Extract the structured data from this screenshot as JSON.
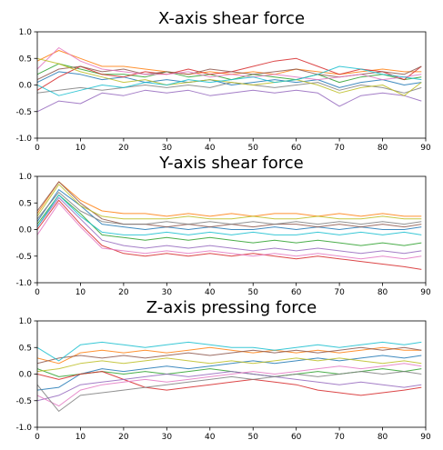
{
  "palette": [
    "#1f77b4",
    "#ff7f0e",
    "#2ca02c",
    "#d62728",
    "#9467bd",
    "#8c564b",
    "#e377c2",
    "#7f7f7f",
    "#bcbd22",
    "#17becf"
  ],
  "chart_data": [
    {
      "type": "line",
      "title": "X-axis shear force",
      "xlabel": "",
      "ylabel": "",
      "xlim": [
        0,
        90
      ],
      "ylim": [
        -1.0,
        1.0
      ],
      "x_ticks": [
        0,
        10,
        20,
        30,
        40,
        50,
        60,
        70,
        80,
        90
      ],
      "y_ticks": [
        -1.0,
        -0.5,
        0.0,
        0.5,
        1.0
      ],
      "x_tick_labels": [
        "0",
        "10",
        "20",
        "30",
        "40",
        "50",
        "60",
        "70",
        "80",
        "90"
      ],
      "y_tick_labels": [
        "-1.0",
        "-0.5",
        "0.0",
        "0.5",
        "1.0"
      ],
      "x": [
        0,
        5,
        10,
        15,
        20,
        25,
        30,
        35,
        40,
        45,
        50,
        55,
        60,
        65,
        70,
        75,
        80,
        85,
        89
      ],
      "series": [
        {
          "values": [
            0.05,
            0.25,
            0.2,
            0.1,
            0.15,
            0.05,
            0.1,
            0.05,
            0.1,
            0.0,
            0.05,
            0.1,
            0.05,
            0.1,
            -0.05,
            0.05,
            0.1,
            0.0,
            0.05
          ]
        },
        {
          "values": [
            0.45,
            0.65,
            0.5,
            0.35,
            0.35,
            0.3,
            0.25,
            0.2,
            0.25,
            0.2,
            0.25,
            0.2,
            0.3,
            0.25,
            0.2,
            0.25,
            0.3,
            0.25,
            0.25
          ]
        },
        {
          "values": [
            0.2,
            0.4,
            0.3,
            0.2,
            0.2,
            0.15,
            0.25,
            0.15,
            0.2,
            0.1,
            0.2,
            0.15,
            0.1,
            0.2,
            0.05,
            0.15,
            0.2,
            0.1,
            0.15
          ]
        },
        {
          "values": [
            -0.1,
            0.15,
            0.35,
            0.2,
            0.15,
            0.25,
            0.2,
            0.3,
            0.2,
            0.25,
            0.35,
            0.45,
            0.5,
            0.35,
            0.2,
            0.3,
            0.25,
            0.1,
            0.35
          ]
        },
        {
          "values": [
            -0.5,
            -0.3,
            -0.35,
            -0.15,
            -0.2,
            -0.1,
            -0.15,
            -0.1,
            -0.2,
            -0.15,
            -0.1,
            -0.15,
            -0.1,
            -0.15,
            -0.4,
            -0.2,
            -0.15,
            -0.2,
            -0.3
          ]
        },
        {
          "values": [
            0.1,
            0.3,
            0.35,
            0.25,
            0.3,
            0.2,
            0.25,
            0.2,
            0.3,
            0.25,
            0.2,
            0.25,
            0.3,
            0.2,
            0.15,
            0.2,
            0.25,
            0.2,
            0.35
          ]
        },
        {
          "values": [
            0.3,
            0.7,
            0.45,
            0.3,
            0.25,
            0.2,
            0.2,
            0.25,
            0.15,
            0.2,
            0.15,
            0.2,
            0.15,
            0.1,
            0.15,
            0.2,
            0.1,
            0.15,
            0.2
          ]
        },
        {
          "values": [
            -0.15,
            -0.1,
            -0.05,
            -0.1,
            -0.05,
            0.0,
            -0.05,
            0.0,
            -0.05,
            0.05,
            0.0,
            -0.05,
            0.0,
            0.05,
            -0.1,
            0.0,
            -0.05,
            -0.15,
            -0.05
          ]
        },
        {
          "values": [
            0.5,
            0.4,
            0.25,
            0.15,
            0.05,
            0.1,
            0.0,
            0.05,
            0.1,
            0.05,
            0.0,
            0.05,
            0.1,
            0.0,
            -0.15,
            -0.05,
            0.0,
            -0.2,
            0.05
          ]
        },
        {
          "values": [
            0.0,
            -0.2,
            -0.1,
            0.0,
            -0.05,
            0.05,
            0.0,
            0.1,
            0.05,
            0.1,
            0.15,
            0.05,
            0.1,
            0.2,
            0.35,
            0.3,
            0.2,
            0.15,
            0.1
          ]
        }
      ]
    },
    {
      "type": "line",
      "title": "Y-axis shear force",
      "xlabel": "",
      "ylabel": "",
      "xlim": [
        0,
        90
      ],
      "ylim": [
        -1.0,
        1.0
      ],
      "x_ticks": [
        0,
        10,
        20,
        30,
        40,
        50,
        60,
        70,
        80,
        90
      ],
      "y_ticks": [
        -1.0,
        -0.5,
        0.0,
        0.5,
        1.0
      ],
      "x_tick_labels": [
        "0",
        "10",
        "20",
        "30",
        "40",
        "50",
        "60",
        "70",
        "80",
        "90"
      ],
      "y_tick_labels": [
        "-1.0",
        "-0.5",
        "0.0",
        "0.5",
        "1.0"
      ],
      "x": [
        0,
        5,
        10,
        15,
        20,
        25,
        30,
        35,
        40,
        45,
        50,
        55,
        60,
        65,
        70,
        75,
        80,
        85,
        89
      ],
      "series": [
        {
          "values": [
            0.15,
            0.75,
            0.45,
            0.1,
            0.05,
            0.0,
            0.05,
            0.0,
            0.05,
            0.0,
            0.0,
            0.05,
            0.0,
            0.05,
            0.0,
            0.05,
            0.0,
            0.0,
            0.05
          ]
        },
        {
          "values": [
            0.3,
            0.9,
            0.55,
            0.35,
            0.3,
            0.3,
            0.25,
            0.3,
            0.25,
            0.3,
            0.25,
            0.3,
            0.3,
            0.25,
            0.3,
            0.25,
            0.3,
            0.25,
            0.25
          ]
        },
        {
          "values": [
            0.1,
            0.65,
            0.3,
            -0.1,
            -0.15,
            -0.2,
            -0.15,
            -0.2,
            -0.15,
            -0.2,
            -0.25,
            -0.2,
            -0.25,
            -0.2,
            -0.25,
            -0.3,
            -0.25,
            -0.3,
            -0.25
          ]
        },
        {
          "values": [
            0.0,
            0.55,
            0.1,
            -0.3,
            -0.45,
            -0.5,
            -0.45,
            -0.5,
            -0.45,
            -0.5,
            -0.45,
            -0.5,
            -0.55,
            -0.5,
            -0.55,
            -0.6,
            -0.65,
            -0.7,
            -0.75
          ]
        },
        {
          "values": [
            0.05,
            0.6,
            0.2,
            -0.2,
            -0.3,
            -0.35,
            -0.3,
            -0.35,
            -0.3,
            -0.35,
            -0.4,
            -0.35,
            -0.4,
            -0.35,
            -0.4,
            -0.45,
            -0.4,
            -0.45,
            -0.4
          ]
        },
        {
          "values": [
            0.35,
            0.9,
            0.5,
            0.2,
            0.1,
            0.1,
            0.05,
            0.1,
            0.05,
            0.1,
            0.05,
            0.1,
            0.1,
            0.05,
            0.1,
            0.05,
            0.1,
            0.05,
            0.1
          ]
        },
        {
          "values": [
            -0.1,
            0.5,
            0.05,
            -0.35,
            -0.4,
            -0.45,
            -0.4,
            -0.45,
            -0.4,
            -0.45,
            -0.5,
            -0.45,
            -0.5,
            -0.45,
            -0.5,
            -0.55,
            -0.5,
            -0.55,
            -0.5
          ]
        },
        {
          "values": [
            0.2,
            0.7,
            0.35,
            0.15,
            0.1,
            0.1,
            0.15,
            0.1,
            0.15,
            0.1,
            0.15,
            0.1,
            0.15,
            0.1,
            0.15,
            0.1,
            0.15,
            0.1,
            0.15
          ]
        },
        {
          "values": [
            0.25,
            0.85,
            0.45,
            0.25,
            0.2,
            0.2,
            0.2,
            0.25,
            0.2,
            0.2,
            0.25,
            0.2,
            0.2,
            0.25,
            0.2,
            0.2,
            0.25,
            0.2,
            0.2
          ]
        },
        {
          "values": [
            0.05,
            0.65,
            0.25,
            -0.05,
            -0.1,
            -0.1,
            -0.05,
            -0.1,
            -0.05,
            -0.1,
            -0.05,
            -0.1,
            -0.1,
            -0.05,
            -0.1,
            -0.05,
            -0.1,
            -0.05,
            -0.1
          ]
        }
      ]
    },
    {
      "type": "line",
      "title": "Z-axis pressing force",
      "xlabel": "",
      "ylabel": "",
      "xlim": [
        0,
        90
      ],
      "ylim": [
        -1.0,
        1.0
      ],
      "x_ticks": [
        0,
        10,
        20,
        30,
        40,
        50,
        60,
        70,
        80,
        90
      ],
      "y_ticks": [
        -1.0,
        -0.5,
        0.0,
        0.5,
        1.0
      ],
      "x_tick_labels": [
        "0",
        "10",
        "20",
        "30",
        "40",
        "50",
        "60",
        "70",
        "80",
        "90"
      ],
      "y_tick_labels": [
        "-1.0",
        "-0.5",
        "0.0",
        "0.5",
        "1.0"
      ],
      "x": [
        0,
        5,
        10,
        15,
        20,
        25,
        30,
        35,
        40,
        45,
        50,
        55,
        60,
        65,
        70,
        75,
        80,
        85,
        89
      ],
      "series": [
        {
          "values": [
            -0.3,
            -0.25,
            0.0,
            0.1,
            0.05,
            0.1,
            0.15,
            0.1,
            0.15,
            0.2,
            0.25,
            0.2,
            0.25,
            0.3,
            0.25,
            0.3,
            0.35,
            0.3,
            0.35
          ]
        },
        {
          "values": [
            0.3,
            0.2,
            0.4,
            0.45,
            0.4,
            0.45,
            0.4,
            0.45,
            0.5,
            0.45,
            0.4,
            0.45,
            0.4,
            0.45,
            0.4,
            0.45,
            0.5,
            0.45,
            0.45
          ]
        },
        {
          "values": [
            0.1,
            -0.05,
            0.0,
            0.05,
            0.0,
            0.05,
            0.0,
            0.05,
            0.1,
            0.05,
            0.0,
            -0.05,
            0.0,
            0.05,
            0.0,
            0.05,
            0.1,
            0.05,
            0.1
          ]
        },
        {
          "values": [
            0.0,
            -0.1,
            0.0,
            0.05,
            -0.1,
            -0.25,
            -0.3,
            -0.25,
            -0.2,
            -0.15,
            -0.1,
            -0.15,
            -0.2,
            -0.3,
            -0.35,
            -0.4,
            -0.35,
            -0.3,
            -0.25
          ]
        },
        {
          "values": [
            -0.5,
            -0.4,
            -0.2,
            -0.15,
            -0.1,
            -0.05,
            0.0,
            -0.05,
            0.0,
            0.05,
            0.0,
            -0.05,
            -0.1,
            -0.15,
            -0.2,
            -0.15,
            -0.2,
            -0.25,
            -0.2
          ]
        },
        {
          "values": [
            0.2,
            0.3,
            0.35,
            0.3,
            0.35,
            0.3,
            0.35,
            0.4,
            0.35,
            0.4,
            0.45,
            0.4,
            0.45,
            0.4,
            0.45,
            0.5,
            0.45,
            0.5,
            0.45
          ]
        },
        {
          "values": [
            -0.4,
            -0.6,
            -0.3,
            -0.2,
            -0.15,
            -0.1,
            -0.15,
            -0.1,
            -0.05,
            0.0,
            0.05,
            0.0,
            0.05,
            0.1,
            0.15,
            0.1,
            0.15,
            0.2,
            0.15
          ]
        },
        {
          "values": [
            -0.2,
            -0.7,
            -0.4,
            -0.35,
            -0.3,
            -0.25,
            -0.2,
            -0.15,
            -0.1,
            -0.05,
            -0.1,
            -0.05,
            0.0,
            -0.05,
            0.0,
            0.05,
            0.0,
            0.05,
            0.0
          ]
        },
        {
          "values": [
            0.05,
            0.1,
            0.2,
            0.25,
            0.2,
            0.25,
            0.3,
            0.25,
            0.2,
            0.25,
            0.2,
            0.25,
            0.3,
            0.25,
            0.3,
            0.25,
            0.2,
            0.25,
            0.2
          ]
        },
        {
          "values": [
            0.5,
            0.25,
            0.55,
            0.6,
            0.55,
            0.5,
            0.55,
            0.6,
            0.55,
            0.5,
            0.5,
            0.45,
            0.5,
            0.55,
            0.5,
            0.55,
            0.6,
            0.55,
            0.6
          ]
        }
      ]
    }
  ]
}
